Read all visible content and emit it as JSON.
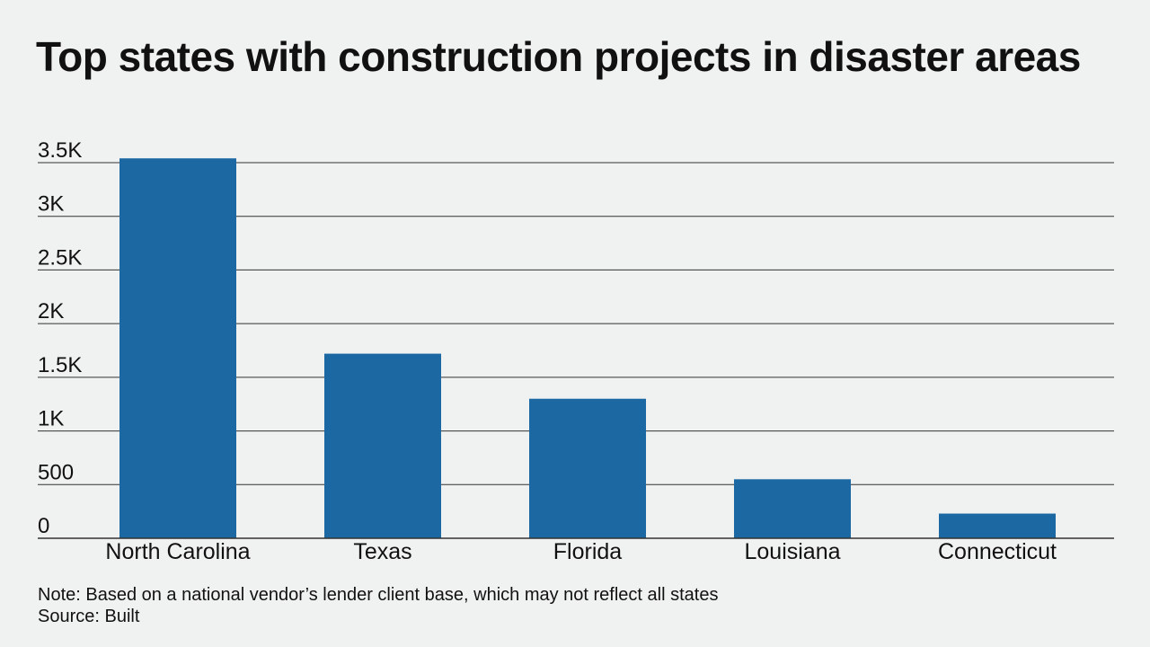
{
  "chart_data": {
    "type": "bar",
    "title": "Top states with construction projects in disaster areas",
    "categories": [
      "North Carolina",
      "Texas",
      "Florida",
      "Louisiana",
      "Connecticut"
    ],
    "values": [
      3540,
      1720,
      1300,
      550,
      230
    ],
    "ylim": [
      0,
      3500
    ],
    "yticks": [
      0,
      500,
      1000,
      1500,
      2000,
      2500,
      3000,
      3500
    ],
    "ytick_labels": [
      "0",
      "500",
      "1K",
      "1.5K",
      "2K",
      "2.5K",
      "3K",
      "3.5K"
    ],
    "xlabel": "",
    "ylabel": "",
    "grid": true,
    "bar_color": "#1c68a3"
  },
  "footer": {
    "note": "Note: Based on a national vendor’s lender client base, which may not reflect all states",
    "source": "Source: Built"
  }
}
